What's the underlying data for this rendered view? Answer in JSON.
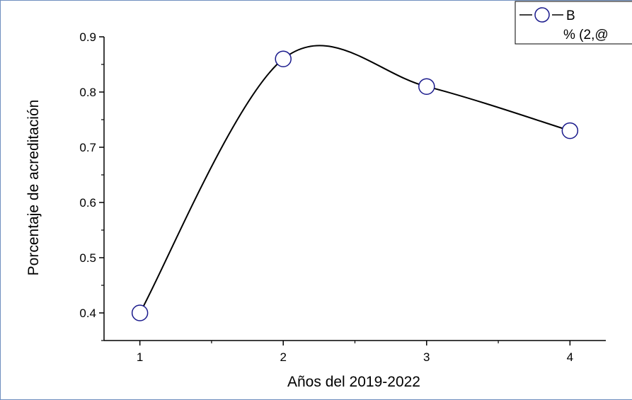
{
  "colors": {
    "frame": "#6f8fbf",
    "line": "#000000",
    "marker_stroke": "#1a1a8c",
    "marker_fill": "#ffffff",
    "axis": "#000000"
  },
  "legend": {
    "series_label": "B",
    "second_line": "% (2,@"
  },
  "chart_data": {
    "type": "line",
    "x": [
      1,
      2,
      3,
      4
    ],
    "series": [
      {
        "name": "B",
        "values": [
          0.4,
          0.86,
          0.81,
          0.73
        ]
      }
    ],
    "xlabel": "Años del 2019-2022",
    "ylabel": "Porcentaje de acreditación",
    "xlim": [
      0.75,
      4.25
    ],
    "ylim": [
      0.35,
      0.9
    ],
    "x_ticks": [
      "1",
      "2",
      "3",
      "4"
    ],
    "y_ticks": [
      "0.4",
      "0.5",
      "0.6",
      "0.7",
      "0.8",
      "0.9"
    ],
    "marker": "open-circle",
    "smoothed": true,
    "grid": false,
    "legend_position": "top-right"
  }
}
